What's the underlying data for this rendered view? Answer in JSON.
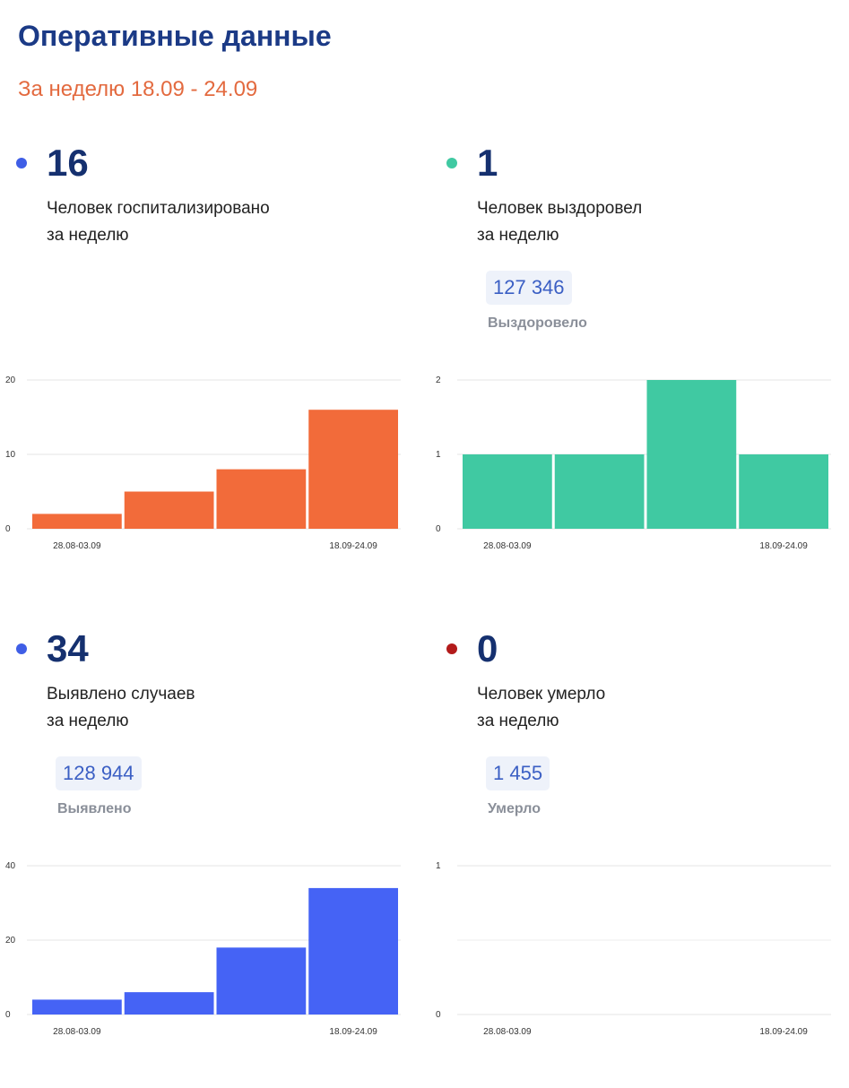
{
  "header": {
    "title": "Оперативные данные",
    "subtitle": "За неделю 18.09 - 24.09"
  },
  "panels": [
    {
      "value": "16",
      "dot_color": "#3f5ee6",
      "desc_line1": "Человек госпитализировано",
      "desc_line2": "за неделю",
      "badge_value": "",
      "badge_label": ""
    },
    {
      "value": "1",
      "dot_color": "#40c9a2",
      "desc_line1": "Человек выздоровел",
      "desc_line2": "за неделю",
      "badge_value": "127 346",
      "badge_label": "Выздоровело"
    },
    {
      "value": "34",
      "dot_color": "#3f5ee6",
      "desc_line1": "Выявлено случаев",
      "desc_line2": "за неделю",
      "badge_value": "128 944",
      "badge_label": "Выявлено"
    },
    {
      "value": "0",
      "dot_color": "#b31b1b",
      "desc_line1": "Человек умерло",
      "desc_line2": "за неделю",
      "badge_value": "1 455",
      "badge_label": "Умерло"
    }
  ],
  "chart_data": [
    {
      "type": "bar",
      "title": "",
      "categories": [
        "28.08-03.09",
        "",
        "",
        "18.09-24.09"
      ],
      "values": [
        2,
        5,
        8,
        16
      ],
      "ylim": [
        0,
        20
      ],
      "yticks": [
        0,
        10,
        20
      ],
      "color": "#f26b3a",
      "grid": true
    },
    {
      "type": "bar",
      "title": "",
      "categories": [
        "28.08-03.09",
        "",
        "",
        "18.09-24.09"
      ],
      "values": [
        1,
        1,
        2,
        1
      ],
      "ylim": [
        0,
        2
      ],
      "yticks": [
        0,
        1,
        2
      ],
      "color": "#40c9a2",
      "grid": true
    },
    {
      "type": "bar",
      "title": "",
      "categories": [
        "28.08-03.09",
        "",
        "",
        "18.09-24.09"
      ],
      "values": [
        4,
        6,
        18,
        34
      ],
      "ylim": [
        0,
        40
      ],
      "yticks": [
        0,
        20,
        40
      ],
      "color": "#4563f5",
      "grid": true
    },
    {
      "type": "bar",
      "title": "",
      "categories": [
        "28.08-03.09",
        "",
        "",
        "18.09-24.09"
      ],
      "values": [
        0,
        0,
        0,
        0
      ],
      "ylim": [
        0,
        1
      ],
      "yticks": [
        0,
        1
      ],
      "color": "#b31b1b",
      "grid": true
    }
  ]
}
